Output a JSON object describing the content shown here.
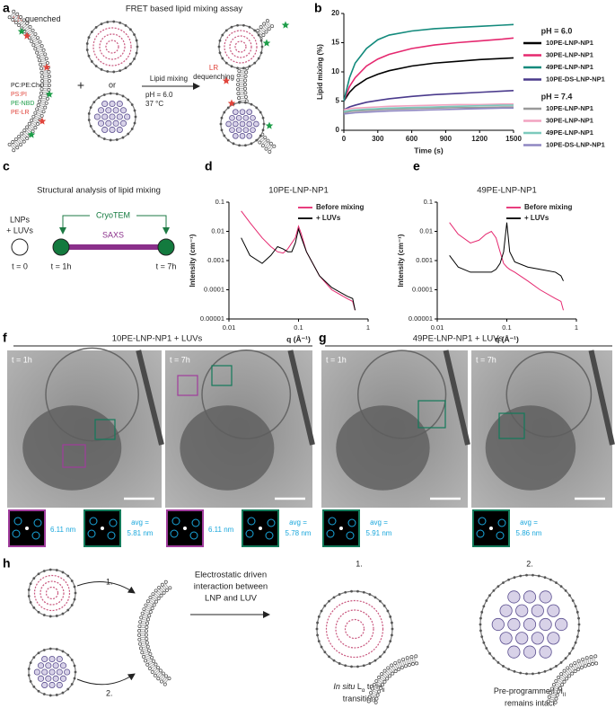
{
  "panel_labels": [
    "a",
    "b",
    "c",
    "d",
    "e",
    "f",
    "g",
    "h"
  ],
  "panel_a": {
    "title": "FRET based lipid mixing assay",
    "lr_quenched": [
      "LR",
      "quenched"
    ],
    "legend": [
      "PC:PE:Chol",
      "PS:PI",
      "PE-NBD",
      "PE-LR"
    ],
    "plus": "+",
    "or": "or",
    "arrow_label": "Lipid mixing",
    "conditions": [
      "pH = 6.0",
      "37 °C"
    ],
    "lr_dequenching": [
      "LR",
      "dequenching"
    ]
  },
  "chart_data": [
    {
      "type": "line",
      "x_label": "Time (s)",
      "y_label": "Lipid mixing (%)",
      "x": [
        0,
        50,
        100,
        200,
        300,
        400,
        600,
        800,
        1000,
        1200,
        1400,
        1500
      ],
      "xlim": [
        0,
        1500
      ],
      "xticks": [
        0,
        300,
        600,
        900,
        1200,
        1500
      ],
      "ylim": [
        0,
        20
      ],
      "yticks": [
        0,
        5,
        10,
        15,
        20
      ],
      "legend_groups": [
        "pH = 6.0",
        "pH = 7.4"
      ],
      "series": [
        {
          "name": "10PE-LNP-NP1",
          "color": "#000000",
          "values": [
            5,
            6.5,
            7.5,
            8.8,
            9.6,
            10.2,
            11,
            11.5,
            11.8,
            12.1,
            12.3,
            12.4
          ]
        },
        {
          "name": "30PE-LNP-NP1",
          "color": "#e5286f",
          "values": [
            5,
            7.5,
            9,
            11,
            12.2,
            13,
            14,
            14.6,
            15,
            15.3,
            15.6,
            15.8
          ]
        },
        {
          "name": "49PE-LNP-NP1",
          "color": "#138a7c",
          "values": [
            5,
            9,
            11.5,
            14,
            15.5,
            16.3,
            17,
            17.4,
            17.6,
            17.8,
            18,
            18.1
          ]
        },
        {
          "name": "10PE-DS-LNP-NP1",
          "color": "#4a3a8c",
          "values": [
            3.5,
            4,
            4.3,
            4.8,
            5.1,
            5.4,
            5.8,
            6.1,
            6.3,
            6.5,
            6.7,
            6.8
          ]
        },
        {
          "name": "10PE-LNP-NP1",
          "color": "#9a9a9a",
          "values": [
            3,
            3.2,
            3.3,
            3.4,
            3.5,
            3.6,
            3.7,
            3.8,
            3.9,
            3.9,
            4,
            4
          ]
        },
        {
          "name": "30PE-LNP-NP1",
          "color": "#f2a3c0",
          "values": [
            3.5,
            3.7,
            3.8,
            3.9,
            4,
            4.1,
            4.2,
            4.3,
            4.4,
            4.4,
            4.5,
            4.5
          ]
        },
        {
          "name": "49PE-LNP-NP1",
          "color": "#7ccabd",
          "values": [
            3.2,
            3.4,
            3.5,
            3.6,
            3.7,
            3.8,
            3.9,
            4,
            4.1,
            4.2,
            4.3,
            4.3
          ]
        },
        {
          "name": "10PE-DS-LNP-NP1",
          "color": "#8f87c2",
          "values": [
            2.8,
            2.9,
            3,
            3.1,
            3.2,
            3.3,
            3.4,
            3.5,
            3.6,
            3.7,
            3.8,
            3.8
          ]
        }
      ]
    },
    {
      "type": "line",
      "title": "10PE-LNP-NP1",
      "x_label": "q (Å⁻¹)",
      "y_label": "Intensity (cm⁻¹)",
      "log_x": true,
      "log_y": true,
      "legend": "upper right",
      "x": [
        0.015,
        0.02,
        0.03,
        0.04,
        0.05,
        0.06,
        0.07,
        0.08,
        0.09,
        0.1,
        0.11,
        0.13,
        0.2,
        0.3,
        0.5,
        0.6,
        0.65
      ],
      "xlim": [
        0.01,
        1
      ],
      "xticks": [
        0.01,
        0.1,
        1
      ],
      "ylim": [
        1e-05,
        0.1
      ],
      "yticks": [
        0.1,
        0.01,
        0.001,
        0.0001,
        1e-05
      ],
      "series": [
        {
          "name": "Before mixing",
          "color": "#e5286f",
          "values": [
            0.05,
            0.02,
            0.006,
            0.003,
            0.002,
            0.0018,
            0.0025,
            0.004,
            0.006,
            0.015,
            0.008,
            0.002,
            0.0003,
            0.0001,
            5e-05,
            4e-05,
            2e-05
          ]
        },
        {
          "name": "+ LUVs",
          "color": "#000000",
          "values": [
            0.006,
            0.0015,
            0.0008,
            0.0015,
            0.003,
            0.0025,
            0.002,
            0.002,
            0.004,
            0.012,
            0.006,
            0.002,
            0.0003,
            0.00012,
            6e-05,
            5e-05,
            2e-05
          ]
        }
      ]
    },
    {
      "type": "line",
      "title": "49PE-LNP-NP1",
      "x_label": "q (Å⁻¹)",
      "y_label": "Intensity (cm⁻¹)",
      "log_x": true,
      "log_y": true,
      "legend": "upper right",
      "x": [
        0.015,
        0.02,
        0.03,
        0.04,
        0.05,
        0.06,
        0.07,
        0.08,
        0.09,
        0.1,
        0.11,
        0.13,
        0.2,
        0.3,
        0.5,
        0.6,
        0.65
      ],
      "xlim": [
        0.01,
        1
      ],
      "xticks": [
        0.01,
        0.1,
        1
      ],
      "ylim": [
        1e-05,
        0.1
      ],
      "yticks": [
        0.1,
        0.01,
        0.001,
        0.0001,
        1e-05
      ],
      "series": [
        {
          "name": "Before mixing",
          "color": "#e5286f",
          "values": [
            0.02,
            0.008,
            0.004,
            0.005,
            0.008,
            0.01,
            0.006,
            0.002,
            0.0008,
            0.0006,
            0.0005,
            0.0004,
            0.0002,
            0.0001,
            5e-05,
            4e-05,
            2e-05
          ]
        },
        {
          "name": "+ LUVs",
          "color": "#000000",
          "values": [
            0.0015,
            0.0006,
            0.0004,
            0.0004,
            0.0004,
            0.0004,
            0.0005,
            0.0008,
            0.002,
            0.02,
            0.002,
            0.0009,
            0.0006,
            0.0005,
            0.0004,
            0.0003,
            0.0002
          ]
        }
      ]
    }
  ],
  "panel_c": {
    "title": "Structural analysis of lipid mixing",
    "start": [
      "LNPs",
      "+ LUVs"
    ],
    "cryotem": "CryoTEM",
    "saxs": "SAXS",
    "times": [
      "t = 0",
      "t = 1h",
      "t = 7h"
    ]
  },
  "panel_f": {
    "title": "10PE-LNP-NP1 + LUVs",
    "images": [
      {
        "time": "t = 1h",
        "fft_label": "6.11 nm",
        "avg_label": "avg =",
        "avg_value": "5.81 nm"
      },
      {
        "time": "t = 7h",
        "fft_label": "6.11 nm",
        "avg_label": "avg =",
        "avg_value": "5.78 nm"
      }
    ]
  },
  "panel_g": {
    "title": "49PE-LNP-NP1 + LUVs",
    "images": [
      {
        "time": "t = 1h",
        "avg_label": "avg =",
        "avg_value": "5.91 nm"
      },
      {
        "time": "t = 7h",
        "avg_label": "avg =",
        "avg_value": "5.86 nm"
      }
    ]
  },
  "panel_h": {
    "steps": [
      "1.",
      "2."
    ],
    "interaction": [
      "Electrostatic driven",
      "interaction between",
      "LNP and LUV"
    ],
    "outcomes": [
      {
        "number": "1.",
        "caption": {
          "line1": [
            "In situ",
            " L",
            "α",
            " to H",
            "II"
          ],
          "line2": "transition"
        }
      },
      {
        "number": "2.",
        "caption": {
          "line1": [
            "Pre-programmed H",
            "II"
          ],
          "line2": "remains intact"
        }
      }
    ]
  }
}
